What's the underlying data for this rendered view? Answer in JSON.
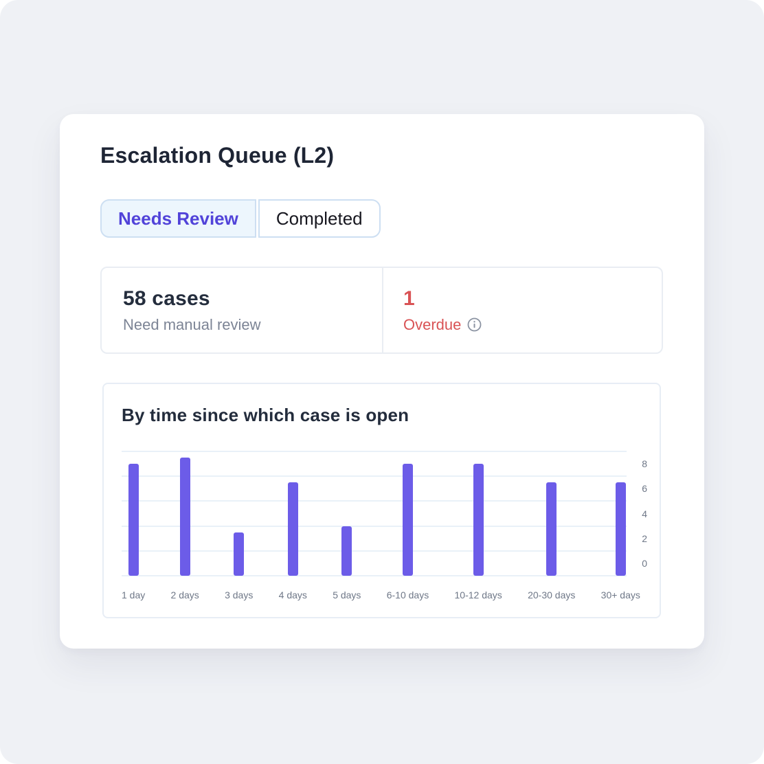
{
  "card": {
    "title": "Escalation Queue (L2)"
  },
  "tabs": [
    {
      "label": "Needs Review",
      "active": true
    },
    {
      "label": "Completed",
      "active": false
    }
  ],
  "stats": {
    "cases": {
      "value": "58 cases",
      "label": "Need manual review"
    },
    "overdue": {
      "value": "1",
      "label": "Overdue",
      "icon": "info-circle-icon"
    }
  },
  "chart_data": {
    "type": "bar",
    "title": "By time since which case is open",
    "categories": [
      "1 day",
      "2 days",
      "3 days",
      "4 days",
      "5 days",
      "6-10 days",
      "10-12 days",
      "20-30 days",
      "30+ days"
    ],
    "values": [
      8,
      8.5,
      2.5,
      6.5,
      3,
      8,
      8,
      6.5,
      6.5
    ],
    "yticks": [
      0,
      2,
      4,
      6,
      8
    ],
    "ylim": [
      0,
      9
    ],
    "grid": true,
    "legend": "none",
    "y_axis_side": "right",
    "bar_color": "#6c5ce8",
    "axis_label_color": "#6e7787",
    "gridline_color": "#e9f1f8"
  },
  "colors": {
    "canvas_bg": "#eff1f5",
    "card_bg": "#ffffff",
    "accent": "#5143d9",
    "danger": "#d95355",
    "heading": "#1e2535",
    "muted": "#7c8495",
    "tab_border": "#cddff2",
    "panel_border": "#e9edf3"
  }
}
